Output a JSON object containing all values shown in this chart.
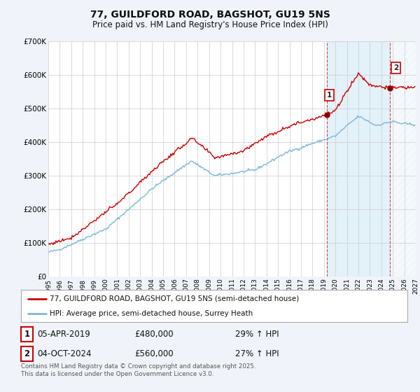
{
  "title_line1": "77, GUILDFORD ROAD, BAGSHOT, GU19 5NS",
  "title_line2": "Price paid vs. HM Land Registry's House Price Index (HPI)",
  "xlim_start": 1995.0,
  "xlim_end": 2027.0,
  "ylim_min": 0,
  "ylim_max": 700000,
  "yticks": [
    0,
    100000,
    200000,
    300000,
    400000,
    500000,
    600000,
    700000
  ],
  "ytick_labels": [
    "£0",
    "£100K",
    "£200K",
    "£300K",
    "£400K",
    "£500K",
    "£600K",
    "£700K"
  ],
  "xticks": [
    1995,
    1996,
    1997,
    1998,
    1999,
    2000,
    2001,
    2002,
    2003,
    2004,
    2005,
    2006,
    2007,
    2008,
    2009,
    2010,
    2011,
    2012,
    2013,
    2014,
    2015,
    2016,
    2017,
    2018,
    2019,
    2020,
    2021,
    2022,
    2023,
    2024,
    2025,
    2026,
    2027
  ],
  "hpi_color": "#7ab8d8",
  "price_color": "#cc0000",
  "marker1_x": 2019.27,
  "marker1_y": 480000,
  "marker1_label": "1",
  "marker1_text": "05-APR-2019",
  "marker1_amount": "£480,000",
  "marker1_hpi": "29% ↑ HPI",
  "marker2_x": 2024.75,
  "marker2_y": 560000,
  "marker2_label": "2",
  "marker2_text": "04-OCT-2024",
  "marker2_amount": "£560,000",
  "marker2_hpi": "27% ↑ HPI",
  "legend_label_price": "77, GUILDFORD ROAD, BAGSHOT, GU19 5NS (semi-detached house)",
  "legend_label_hpi": "HPI: Average price, semi-detached house, Surrey Heath",
  "footnote": "Contains HM Land Registry data © Crown copyright and database right 2025.\nThis data is licensed under the Open Government Licence v3.0.",
  "bg_color": "#f0f4fa",
  "plot_bg": "#ffffff",
  "shade_start": 2019.27,
  "shade_end": 2024.75,
  "hatch_start": 2024.75,
  "hatch_end": 2027.0
}
